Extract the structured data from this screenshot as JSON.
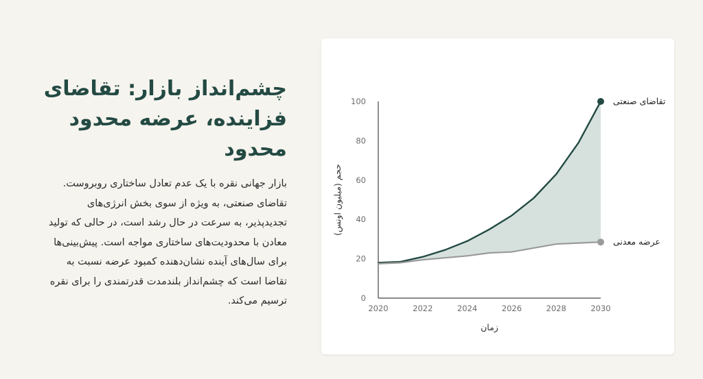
{
  "text": {
    "title": "چشم‌انداز بازار: تقاضای فزاینده، عرضه محدود محدود",
    "body": "بازار جهانی نقره با یک عدم تعادل ساختاری روبروست. تقاضای صنعتی، به ویژه از سوی بخش انرژی‌های تجدیدپذیر، به سرعت در حال رشد است، در حالی که تولید معادن با محدودیت‌های ساختاری مواجه است. پیش‌بینی‌ها برای سال‌های آینده نشان‌دهنده کمبود عرضه نسبت به تقاضا است که چشم‌انداز بلندمدت قدرتمندی را برای نقره ترسیم می‌کند."
  },
  "colors": {
    "demand": "#234a43",
    "supply": "#9a9a9a",
    "gap_fill": "#cfdcd8",
    "axis": "#6b6b6b"
  },
  "chart_data": {
    "type": "line",
    "xlabel": "زمان",
    "ylabel": "حجم (میلیون اونس)",
    "xlim": [
      2020,
      2030
    ],
    "ylim": [
      0,
      100
    ],
    "x_ticks": [
      2020,
      2022,
      2024,
      2026,
      2028,
      2030
    ],
    "y_ticks": [
      0,
      20,
      40,
      60,
      80,
      100
    ],
    "x": [
      2020,
      2021,
      2022,
      2023,
      2024,
      2025,
      2026,
      2027,
      2028,
      2029,
      2030
    ],
    "series": [
      {
        "name": "تقاضای صنعتی",
        "values": [
          18,
          18.5,
          21,
          24.5,
          29,
          35,
          42,
          51,
          63,
          79,
          100
        ],
        "end_label": true
      },
      {
        "name": "عرضه معدنی",
        "values": [
          17.5,
          18,
          19.5,
          20.5,
          21.5,
          23,
          23.5,
          25.5,
          27.5,
          28,
          28.5
        ],
        "end_label": true
      }
    ],
    "fill_between": true,
    "grid": false,
    "legend": "none"
  }
}
